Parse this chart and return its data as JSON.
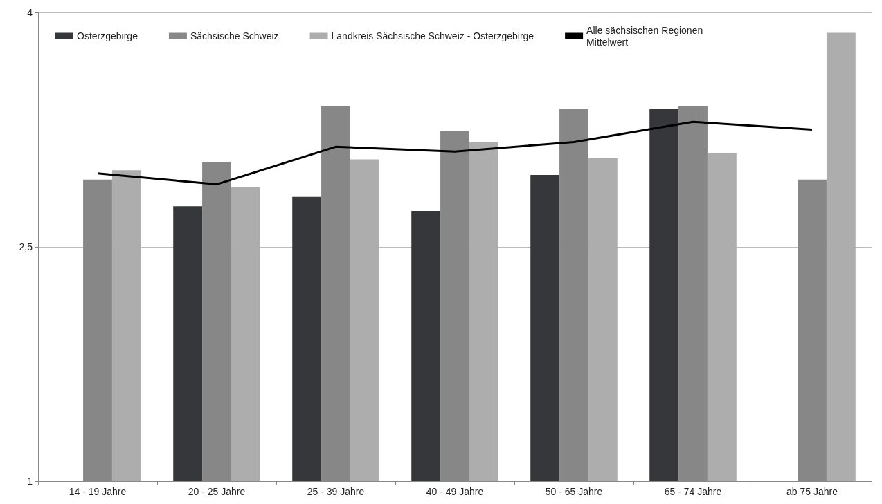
{
  "chart_data": {
    "type": "bar",
    "categories": [
      "14 - 19 Jahre",
      "20 - 25 Jahre",
      "25 - 39 Jahre",
      "40 - 49 Jahre",
      "50 - 65 Jahre",
      "65 - 74 Jahre",
      "ab 75 Jahre"
    ],
    "series": [
      {
        "name": "Osterzgebirge",
        "color": "#36373a",
        "values": [
          null,
          2.76,
          2.82,
          2.73,
          2.96,
          3.38,
          null
        ]
      },
      {
        "name": "Sächsische Schweiz",
        "color": "#878787",
        "values": [
          2.93,
          3.04,
          3.4,
          3.24,
          3.38,
          3.4,
          2.93
        ]
      },
      {
        "name": "Landkreis Sächsische Schweiz - Osterzgebirge",
        "color": "#adadad",
        "values": [
          2.99,
          2.88,
          3.06,
          3.17,
          3.07,
          3.1,
          3.87
        ]
      },
      {
        "name": "Alle sächsischen Regionen Mittelwert",
        "type": "line",
        "color": "#000000",
        "values": [
          2.97,
          2.9,
          3.14,
          3.11,
          3.17,
          3.3,
          3.25
        ]
      }
    ],
    "ylim": [
      1,
      4
    ],
    "yticks": [
      1,
      {
        "value": 2.5,
        "label": "2,5"
      },
      4
    ],
    "grid": "y",
    "legend": "top",
    "marker": "none"
  }
}
